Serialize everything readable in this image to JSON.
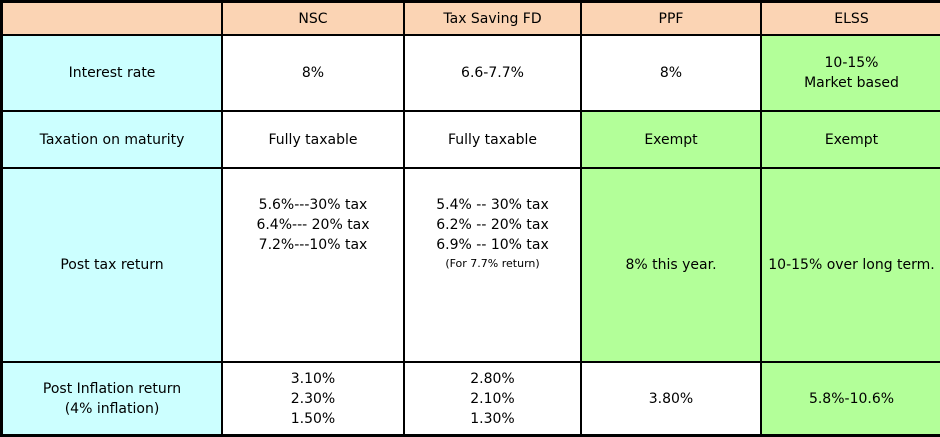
{
  "header": {
    "corner": "",
    "columns": [
      "NSC",
      "Tax Saving FD",
      "PPF",
      "ELSS"
    ]
  },
  "rows": {
    "interest": {
      "label": "Interest rate",
      "nsc": "8%",
      "fd": "6.6-7.7%",
      "ppf": "8%",
      "elss": [
        "10-15%",
        "Market based"
      ]
    },
    "taxation": {
      "label": "Taxation on maturity",
      "nsc": "Fully taxable",
      "fd": "Fully taxable",
      "ppf": "Exempt",
      "elss": "Exempt"
    },
    "post_tax": {
      "label": "Post tax return",
      "nsc": [
        "5.6%---30% tax",
        "6.4%--- 20% tax",
        "7.2%---10% tax"
      ],
      "fd": [
        "5.4% -- 30% tax",
        "6.2% -- 20% tax",
        "6.9% -- 10% tax"
      ],
      "fd_note": "(For 7.7% return)",
      "ppf": "8% this year.",
      "elss": "10-15% over long term."
    },
    "post_inflation": {
      "label": [
        "Post Inflation return",
        "(4%  inflation)"
      ],
      "nsc": [
        "3.10%",
        "2.30%",
        "1.50%"
      ],
      "fd": [
        "2.80%",
        "2.10%",
        "1.30%"
      ],
      "ppf": "3.80%",
      "elss": "5.8%-10.6%"
    }
  },
  "colors": {
    "header_bg": "#fbd4b4",
    "label_bg": "#ccffff",
    "value_bg": "#ffffff",
    "highlight_bg": "#b3ff99",
    "border": "#000000"
  }
}
